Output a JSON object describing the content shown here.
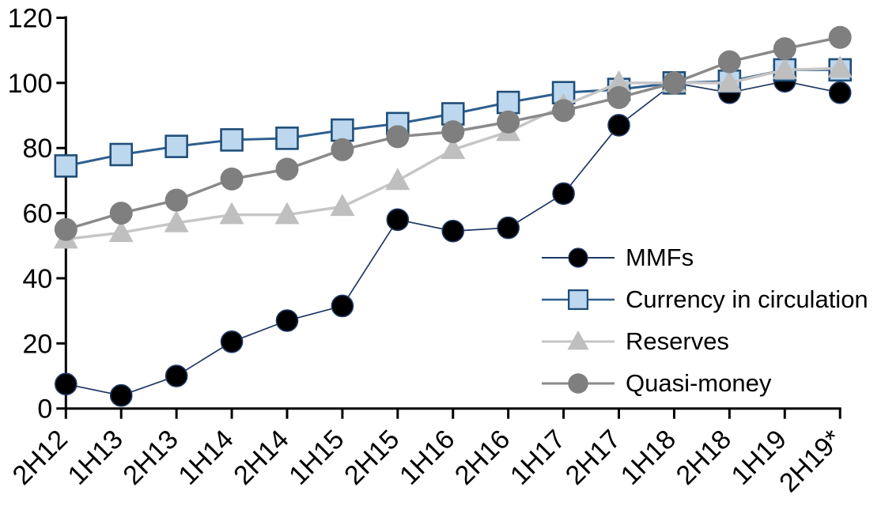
{
  "chart_data": {
    "type": "line",
    "title": "",
    "xlabel": "",
    "ylabel": "",
    "categories": [
      "2H12",
      "1H13",
      "2H13",
      "1H14",
      "2H14",
      "1H15",
      "2H15",
      "1H16",
      "2H16",
      "1H17",
      "2H17",
      "1H18",
      "2H18",
      "1H19",
      "2H19*"
    ],
    "series": [
      {
        "name": "MMFs",
        "values": [
          7.5,
          4,
          10,
          20.5,
          27,
          31.5,
          58,
          54.5,
          55.5,
          66,
          87,
          100,
          97,
          100.5,
          97
        ],
        "line_color": "#1f3864",
        "line_width": 1.7,
        "marker": "dot",
        "marker_fill": "#000000",
        "marker_stroke": "#1f3864",
        "marker_size": 27
      },
      {
        "name": "Currency in circulation",
        "values": [
          74.5,
          78,
          80.5,
          82.5,
          83,
          85.5,
          87.5,
          90.5,
          94,
          97,
          98,
          100,
          100.5,
          104,
          104
        ],
        "line_color": "#2e5f8f",
        "line_width": 3,
        "marker": "square",
        "marker_fill": "#bdd7ee",
        "marker_stroke": "#1f4e79",
        "marker_size": 27
      },
      {
        "name": "Reserves",
        "values": [
          52,
          54,
          57,
          59.5,
          59.5,
          62,
          70,
          79.5,
          85,
          93,
          100,
          100,
          100,
          104,
          104.5
        ],
        "line_color": "#c6c6c6",
        "line_width": 3.5,
        "marker": "triangle",
        "marker_fill": "#bfbfbf",
        "marker_stroke": "none",
        "marker_size": 31
      },
      {
        "name": "Quasi-money",
        "values": [
          55,
          60,
          64,
          70.5,
          73.5,
          79.5,
          83.5,
          85,
          88,
          91.5,
          95.5,
          100,
          106.5,
          110.5,
          114
        ],
        "line_color": "#8a8a8a",
        "line_width": 3.5,
        "marker": "circle",
        "marker_fill": "#7f7f7f",
        "marker_stroke": "none",
        "marker_size": 29
      }
    ],
    "ylim": [
      0,
      120
    ],
    "yticks": [
      0,
      20,
      40,
      60,
      80,
      100,
      120
    ],
    "grid": false,
    "legend_position": "inside-right",
    "axis_color": "#000000",
    "tick_label_color": "#000000",
    "tick_label_font_px": 34
  }
}
